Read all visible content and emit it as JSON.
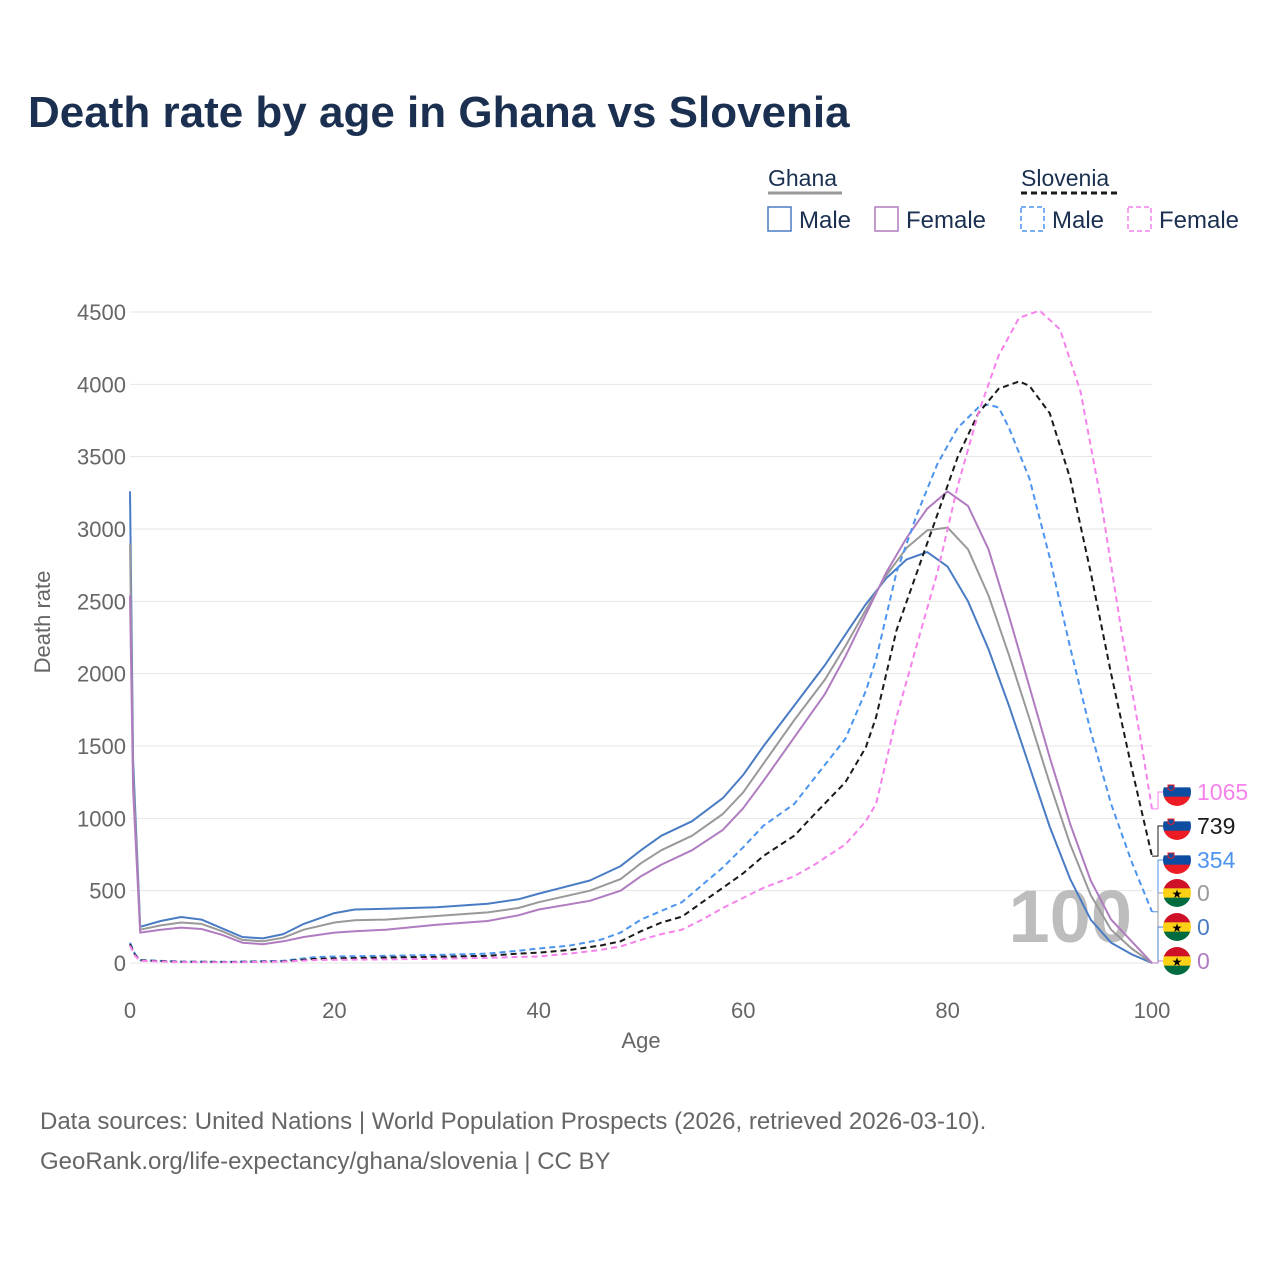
{
  "title": "Death rate by age in Ghana vs Slovenia",
  "sources": {
    "line1": "Data sources: United Nations | World Population Prospects (2026, retrieved 2026-03-10).",
    "line2": "GeoRank.org/life-expectancy/ghana/slovenia | CC BY"
  },
  "legend": {
    "groups": [
      {
        "name": "Ghana",
        "style": "solid",
        "color": "#999999",
        "items": [
          {
            "label": "Male",
            "color": "#4a7cc4"
          },
          {
            "label": "Female",
            "color": "#b07cc0"
          }
        ]
      },
      {
        "name": "Slovenia",
        "style": "dashed",
        "color": "#1a1a1a",
        "items": [
          {
            "label": "Male",
            "color": "#4d94ee"
          },
          {
            "label": "Female",
            "color": "#f682ec"
          }
        ]
      }
    ]
  },
  "colors": {
    "ghana_male": "#4a7cc4",
    "ghana_total": "#999999",
    "ghana_female": "#b07cc0",
    "slovenia_male": "#4d94ee",
    "slovenia_total": "#1a1a1a",
    "slovenia_female": "#f682ec",
    "grid": "#e6e6e6",
    "axis_text": "#666666",
    "watermark": "#bdbdbd",
    "flag_ghana": [
      "#ce1126",
      "#fcd116",
      "#006b3f"
    ],
    "flag_slovenia": [
      "#ffffff",
      "#0c4da2",
      "#ed1c24"
    ]
  },
  "chart_data": {
    "type": "line",
    "xlabel": "Age",
    "ylabel": "Death rate",
    "xlim": [
      0,
      100
    ],
    "ylim": [
      0,
      4500
    ],
    "xticks": [
      0,
      20,
      40,
      60,
      80,
      100
    ],
    "yticks": [
      0,
      500,
      1000,
      1500,
      2000,
      2500,
      3000,
      3500,
      4000,
      4500
    ],
    "current_age_label": "100",
    "series": [
      {
        "key": "ghana_male",
        "name": "Ghana Male",
        "country": "Ghana",
        "dashed": false,
        "end_label": "0",
        "points": [
          [
            0,
            3260
          ],
          [
            0.3,
            1400
          ],
          [
            1,
            250
          ],
          [
            3,
            290
          ],
          [
            5,
            318
          ],
          [
            7,
            300
          ],
          [
            9,
            240
          ],
          [
            11,
            180
          ],
          [
            13,
            170
          ],
          [
            15,
            200
          ],
          [
            17,
            270
          ],
          [
            20,
            345
          ],
          [
            22,
            370
          ],
          [
            25,
            375
          ],
          [
            30,
            385
          ],
          [
            35,
            410
          ],
          [
            38,
            440
          ],
          [
            40,
            480
          ],
          [
            45,
            570
          ],
          [
            48,
            670
          ],
          [
            50,
            780
          ],
          [
            52,
            880
          ],
          [
            55,
            980
          ],
          [
            58,
            1140
          ],
          [
            60,
            1300
          ],
          [
            62,
            1500
          ],
          [
            65,
            1780
          ],
          [
            68,
            2060
          ],
          [
            70,
            2270
          ],
          [
            72,
            2480
          ],
          [
            74,
            2660
          ],
          [
            76,
            2790
          ],
          [
            78,
            2840
          ],
          [
            80,
            2740
          ],
          [
            82,
            2500
          ],
          [
            84,
            2170
          ],
          [
            86,
            1780
          ],
          [
            88,
            1360
          ],
          [
            90,
            940
          ],
          [
            92,
            580
          ],
          [
            94,
            300
          ],
          [
            96,
            140
          ],
          [
            98,
            60
          ],
          [
            100,
            0
          ]
        ]
      },
      {
        "key": "ghana_total",
        "name": "Ghana",
        "country": "Ghana",
        "dashed": false,
        "end_label": "",
        "points": [
          [
            0,
            2900
          ],
          [
            0.3,
            1300
          ],
          [
            1,
            230
          ],
          [
            3,
            260
          ],
          [
            5,
            280
          ],
          [
            7,
            270
          ],
          [
            9,
            220
          ],
          [
            11,
            160
          ],
          [
            13,
            150
          ],
          [
            15,
            175
          ],
          [
            17,
            230
          ],
          [
            20,
            280
          ],
          [
            22,
            295
          ],
          [
            25,
            300
          ],
          [
            30,
            325
          ],
          [
            35,
            350
          ],
          [
            38,
            380
          ],
          [
            40,
            420
          ],
          [
            45,
            500
          ],
          [
            48,
            580
          ],
          [
            50,
            690
          ],
          [
            52,
            780
          ],
          [
            55,
            880
          ],
          [
            58,
            1030
          ],
          [
            60,
            1180
          ],
          [
            62,
            1380
          ],
          [
            65,
            1680
          ],
          [
            68,
            1960
          ],
          [
            70,
            2190
          ],
          [
            72,
            2440
          ],
          [
            74,
            2680
          ],
          [
            76,
            2870
          ],
          [
            78,
            2990
          ],
          [
            80,
            3010
          ],
          [
            82,
            2860
          ],
          [
            84,
            2540
          ],
          [
            86,
            2130
          ],
          [
            88,
            1690
          ],
          [
            90,
            1240
          ],
          [
            92,
            820
          ],
          [
            94,
            470
          ],
          [
            96,
            230
          ],
          [
            98,
            100
          ],
          [
            100,
            0
          ]
        ]
      },
      {
        "key": "ghana_female",
        "name": "Ghana Female",
        "country": "Ghana",
        "dashed": false,
        "end_label": "0",
        "points": [
          [
            0,
            2540
          ],
          [
            0.3,
            1200
          ],
          [
            1,
            210
          ],
          [
            3,
            230
          ],
          [
            5,
            245
          ],
          [
            7,
            235
          ],
          [
            9,
            195
          ],
          [
            11,
            140
          ],
          [
            13,
            130
          ],
          [
            15,
            150
          ],
          [
            17,
            180
          ],
          [
            20,
            210
          ],
          [
            22,
            220
          ],
          [
            25,
            230
          ],
          [
            30,
            265
          ],
          [
            35,
            290
          ],
          [
            38,
            330
          ],
          [
            40,
            370
          ],
          [
            45,
            430
          ],
          [
            48,
            500
          ],
          [
            50,
            600
          ],
          [
            52,
            680
          ],
          [
            55,
            780
          ],
          [
            58,
            920
          ],
          [
            60,
            1070
          ],
          [
            62,
            1260
          ],
          [
            65,
            1560
          ],
          [
            68,
            1860
          ],
          [
            70,
            2120
          ],
          [
            72,
            2410
          ],
          [
            74,
            2700
          ],
          [
            76,
            2940
          ],
          [
            78,
            3140
          ],
          [
            80,
            3260
          ],
          [
            82,
            3160
          ],
          [
            84,
            2860
          ],
          [
            86,
            2400
          ],
          [
            88,
            1910
          ],
          [
            90,
            1420
          ],
          [
            92,
            960
          ],
          [
            94,
            570
          ],
          [
            96,
            300
          ],
          [
            98,
            150
          ],
          [
            100,
            0
          ]
        ]
      },
      {
        "key": "slovenia_male",
        "name": "Slovenia Male",
        "country": "Slovenia",
        "dashed": true,
        "end_label": "354",
        "points": [
          [
            0,
            140
          ],
          [
            0.5,
            60
          ],
          [
            1,
            20
          ],
          [
            5,
            10
          ],
          [
            10,
            8
          ],
          [
            15,
            15
          ],
          [
            18,
            40
          ],
          [
            20,
            45
          ],
          [
            25,
            50
          ],
          [
            30,
            55
          ],
          [
            35,
            65
          ],
          [
            38,
            85
          ],
          [
            40,
            100
          ],
          [
            43,
            120
          ],
          [
            46,
            160
          ],
          [
            48,
            210
          ],
          [
            50,
            300
          ],
          [
            52,
            360
          ],
          [
            54,
            420
          ],
          [
            56,
            540
          ],
          [
            58,
            660
          ],
          [
            60,
            800
          ],
          [
            62,
            950
          ],
          [
            65,
            1100
          ],
          [
            67,
            1280
          ],
          [
            70,
            1550
          ],
          [
            72,
            1880
          ],
          [
            73,
            2100
          ],
          [
            75,
            2700
          ],
          [
            77,
            3100
          ],
          [
            79,
            3450
          ],
          [
            81,
            3700
          ],
          [
            83,
            3840
          ],
          [
            84,
            3860
          ],
          [
            85,
            3840
          ],
          [
            86,
            3700
          ],
          [
            88,
            3350
          ],
          [
            90,
            2800
          ],
          [
            92,
            2180
          ],
          [
            94,
            1600
          ],
          [
            96,
            1100
          ],
          [
            98,
            700
          ],
          [
            100,
            354
          ]
        ]
      },
      {
        "key": "slovenia_total",
        "name": "Slovenia",
        "country": "Slovenia",
        "dashed": true,
        "end_label": "739",
        "points": [
          [
            0,
            130
          ],
          [
            0.5,
            55
          ],
          [
            1,
            18
          ],
          [
            5,
            8
          ],
          [
            10,
            7
          ],
          [
            15,
            12
          ],
          [
            18,
            28
          ],
          [
            20,
            32
          ],
          [
            25,
            38
          ],
          [
            30,
            42
          ],
          [
            35,
            50
          ],
          [
            38,
            65
          ],
          [
            40,
            72
          ],
          [
            43,
            90
          ],
          [
            46,
            120
          ],
          [
            48,
            150
          ],
          [
            50,
            220
          ],
          [
            52,
            280
          ],
          [
            54,
            320
          ],
          [
            56,
            420
          ],
          [
            58,
            520
          ],
          [
            60,
            620
          ],
          [
            62,
            740
          ],
          [
            65,
            880
          ],
          [
            67,
            1030
          ],
          [
            70,
            1250
          ],
          [
            72,
            1490
          ],
          [
            73,
            1700
          ],
          [
            75,
            2300
          ],
          [
            77,
            2700
          ],
          [
            79,
            3100
          ],
          [
            81,
            3500
          ],
          [
            83,
            3800
          ],
          [
            85,
            3970
          ],
          [
            87,
            4020
          ],
          [
            88,
            3990
          ],
          [
            90,
            3800
          ],
          [
            92,
            3350
          ],
          [
            94,
            2700
          ],
          [
            96,
            2000
          ],
          [
            98,
            1350
          ],
          [
            100,
            739
          ]
        ]
      },
      {
        "key": "slovenia_female",
        "name": "Slovenia Female",
        "country": "Slovenia",
        "dashed": true,
        "end_label": "1065",
        "points": [
          [
            0,
            120
          ],
          [
            0.5,
            50
          ],
          [
            1,
            15
          ],
          [
            5,
            6
          ],
          [
            10,
            5
          ],
          [
            15,
            10
          ],
          [
            18,
            20
          ],
          [
            20,
            22
          ],
          [
            25,
            25
          ],
          [
            30,
            30
          ],
          [
            35,
            35
          ],
          [
            38,
            42
          ],
          [
            40,
            45
          ],
          [
            43,
            65
          ],
          [
            46,
            90
          ],
          [
            48,
            115
          ],
          [
            50,
            160
          ],
          [
            52,
            200
          ],
          [
            54,
            230
          ],
          [
            56,
            300
          ],
          [
            58,
            380
          ],
          [
            60,
            450
          ],
          [
            62,
            520
          ],
          [
            65,
            600
          ],
          [
            67,
            680
          ],
          [
            70,
            820
          ],
          [
            72,
            980
          ],
          [
            73,
            1100
          ],
          [
            75,
            1700
          ],
          [
            77,
            2200
          ],
          [
            79,
            2700
          ],
          [
            81,
            3300
          ],
          [
            83,
            3800
          ],
          [
            85,
            4200
          ],
          [
            87,
            4460
          ],
          [
            89,
            4510
          ],
          [
            91,
            4380
          ],
          [
            93,
            3950
          ],
          [
            95,
            3200
          ],
          [
            97,
            2300
          ],
          [
            99,
            1500
          ],
          [
            100,
            1065
          ]
        ]
      }
    ]
  }
}
